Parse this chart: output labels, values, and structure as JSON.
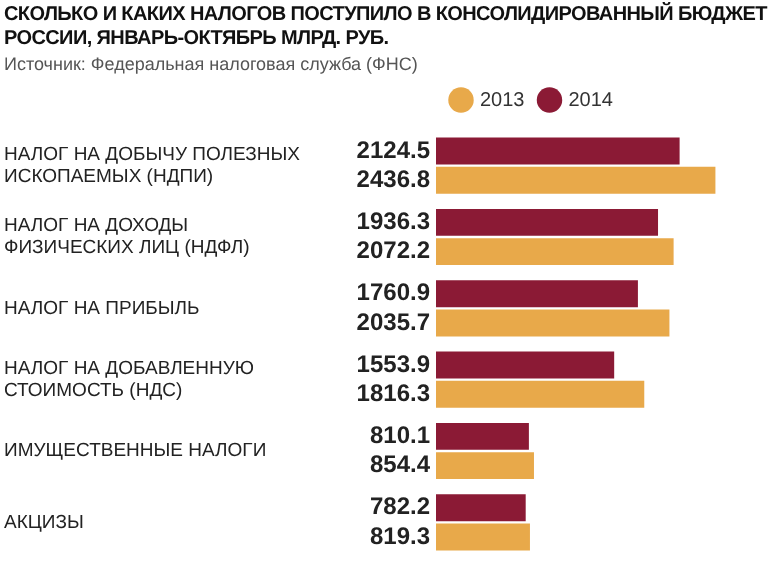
{
  "chart_data": {
    "type": "bar",
    "orientation": "horizontal",
    "title": "СКОЛЬКО И КАКИХ НАЛОГОВ ПОСТУПИЛО В КОНСОЛИДИРОВАННЫЙ БЮДЖЕТ РОССИИ, ЯНВАРЬ-ОКТЯБРЬ МЛРД. РУБ.",
    "subtitle": "Источник: Федеральная налоговая служба (ФНС)",
    "categories": [
      "НАЛОГ НА ДОБЫЧУ ПОЛЕЗНЫХ ИСКОПАЕМЫХ (НДПИ)",
      "НАЛОГ НА ДОХОДЫ ФИЗИЧЕСКИХ ЛИЦ (НДФЛ)",
      "НАЛОГ НА ПРИБЫЛЬ",
      "НАЛОГ НА ДОБАВЛЕННУЮ СТОИМОСТЬ (НДС)",
      "ИМУЩЕСТВЕННЫЕ НАЛОГИ",
      "АКЦИЗЫ"
    ],
    "series": [
      {
        "name": "2014",
        "color": "#8b1a35",
        "values": [
          2124.5,
          1936.3,
          1760.9,
          1553.9,
          810.1,
          782.2
        ]
      },
      {
        "name": "2013",
        "color": "#e8a94a",
        "values": [
          2436.8,
          2072.2,
          2035.7,
          1816.3,
          854.4,
          819.3
        ]
      }
    ],
    "data_labels": true,
    "legend": "top left"
  }
}
